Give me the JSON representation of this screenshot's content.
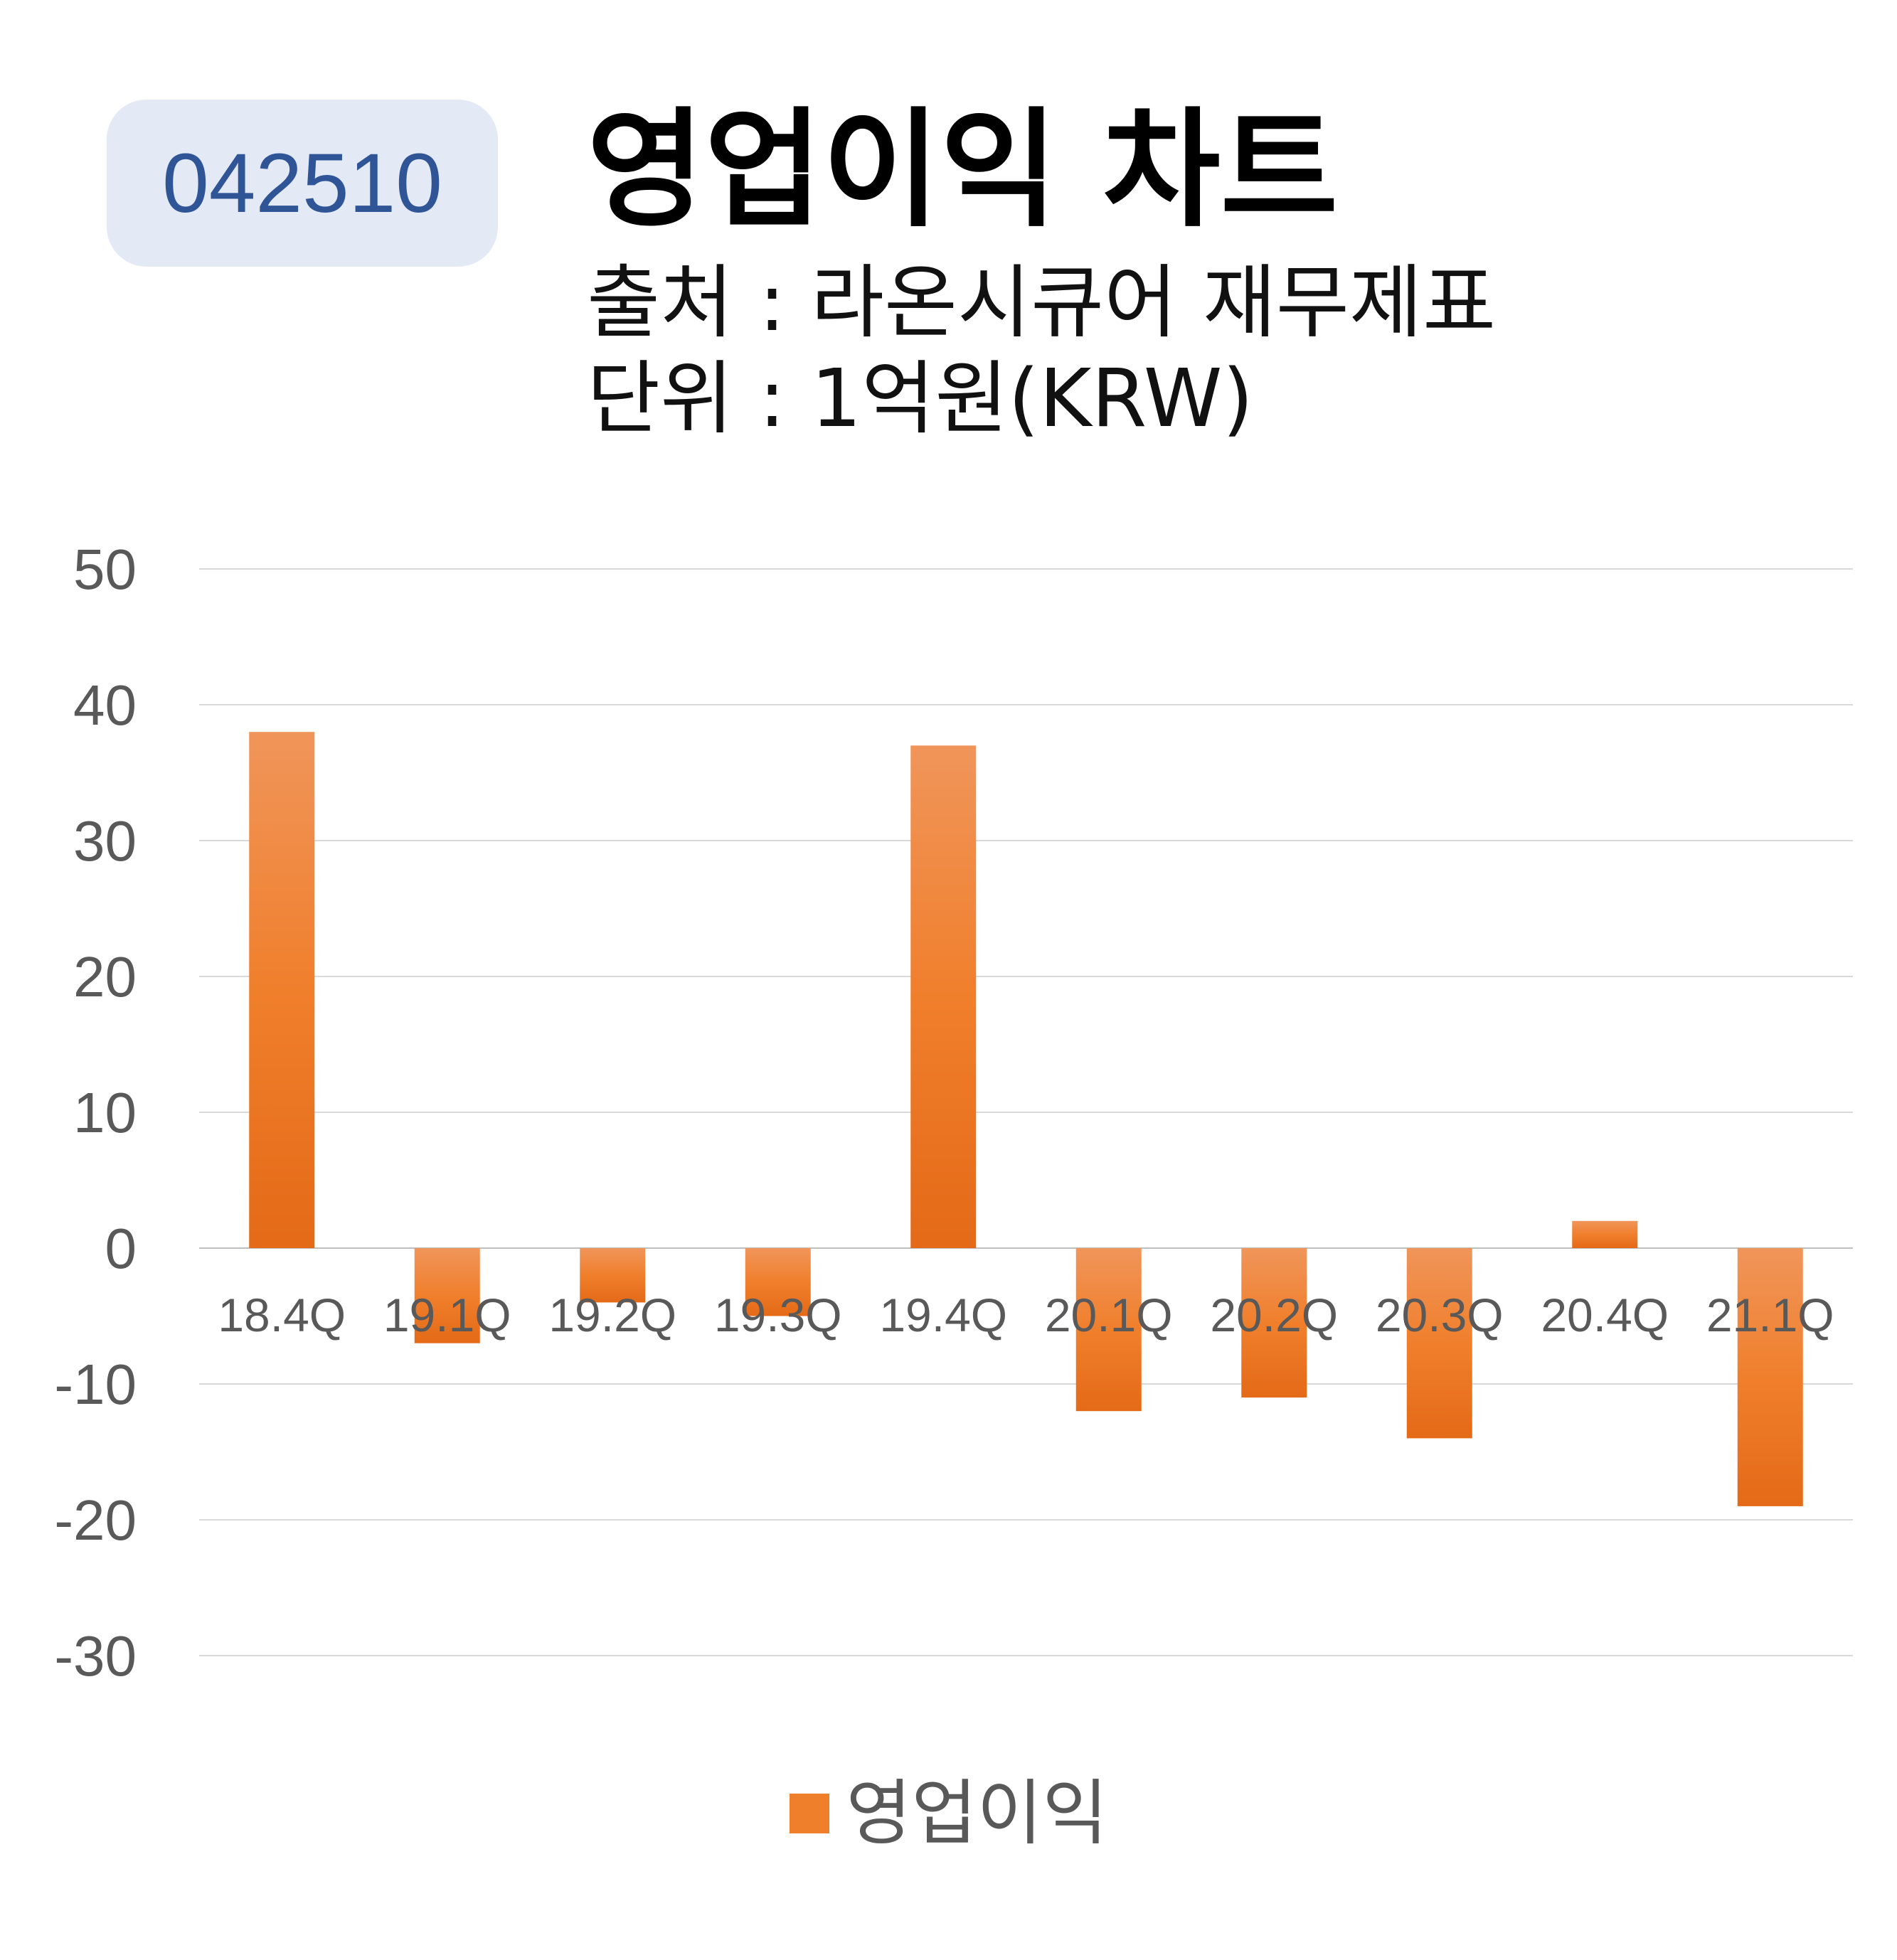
{
  "header": {
    "code": "042510",
    "title": "영업이익 차트",
    "source": "출처 : 라온시큐어 재무제표",
    "unit": "단위 : 1억원(KRW)"
  },
  "colors": {
    "bar": "#f07f2c",
    "bar_light": "#f0955a",
    "bar_dark": "#e46a17",
    "grid": "#d9d9d9",
    "tick": "#595959",
    "badge_bg": "#e3e9f5",
    "badge_text": "#2f5597"
  },
  "chart_data": {
    "type": "bar",
    "title": "영업이익 차트",
    "xlabel": "",
    "ylabel": "",
    "ylim": [
      -30,
      50
    ],
    "yticks": [
      50,
      40,
      30,
      20,
      10,
      0,
      -10,
      -20,
      -30
    ],
    "grid": true,
    "legend_position": "bottom",
    "categories": [
      "18.4Q",
      "19.1Q",
      "19.2Q",
      "19.3Q",
      "19.4Q",
      "20.1Q",
      "20.2Q",
      "20.3Q",
      "20.4Q",
      "21.1Q"
    ],
    "series": [
      {
        "name": "영업이익",
        "values": [
          38,
          -7,
          -4,
          -5,
          37,
          -12,
          -11,
          -14,
          2,
          -19
        ]
      }
    ]
  }
}
